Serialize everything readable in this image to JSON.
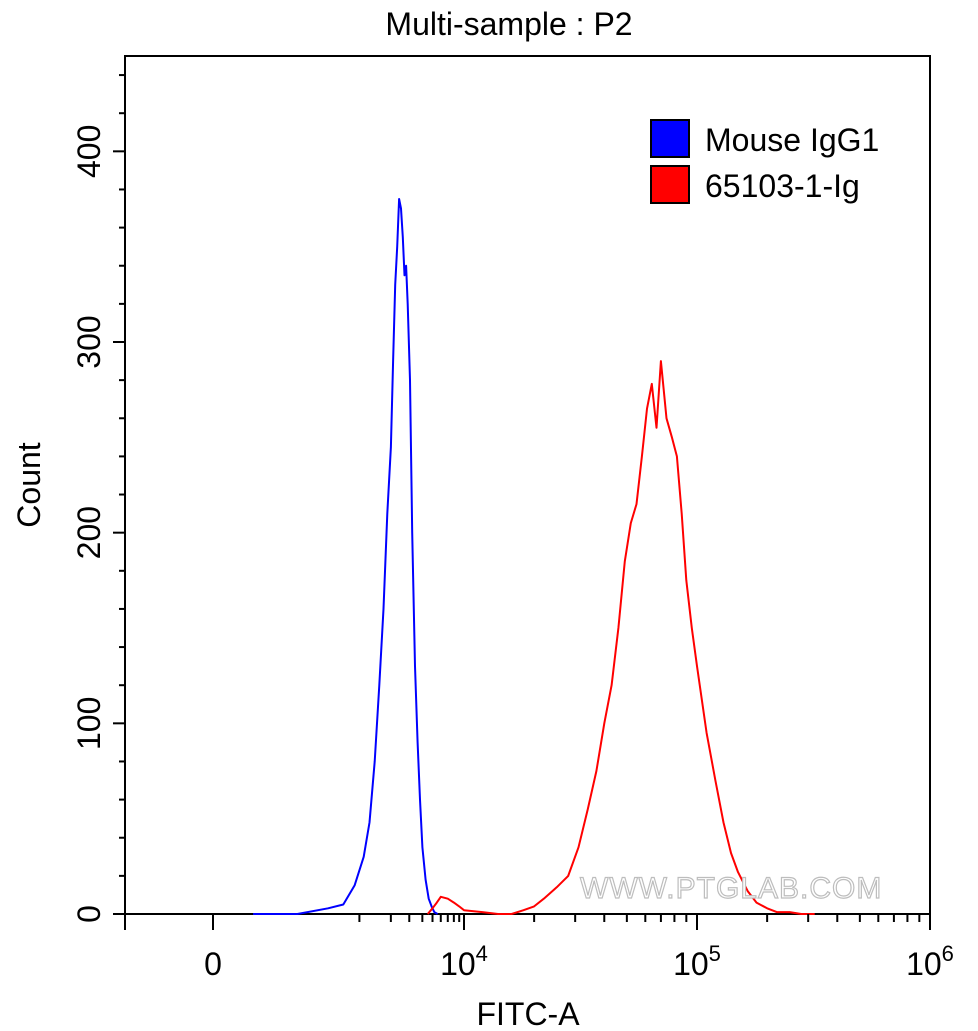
{
  "chart_data": {
    "type": "line",
    "title": "Multi-sample : P2",
    "xlabel": "FITC-A",
    "ylabel": "Count",
    "x_scale": "biexponential",
    "xlim": [
      -1000,
      1000000
    ],
    "ylim": [
      0,
      450
    ],
    "x_tick_labels": [
      {
        "value": 0,
        "base": "0",
        "exp": ""
      },
      {
        "value": 10000,
        "base": "10",
        "exp": "4"
      },
      {
        "value": 100000,
        "base": "10",
        "exp": "5"
      },
      {
        "value": 1000000,
        "base": "10",
        "exp": "6"
      }
    ],
    "y_ticks": [
      0,
      100,
      200,
      300,
      400
    ],
    "legend": {
      "position": "top-right"
    },
    "watermark": "WWW.PTGLAB.COM",
    "series": [
      {
        "name": "Mouse IgG1",
        "color": "#0000ff",
        "x": [
          80,
          250,
          500,
          700,
          900,
          1100,
          1250,
          1400,
          1550,
          1700,
          1850,
          2000,
          2100,
          2200,
          2300,
          2400,
          2500,
          2600,
          2700,
          2800,
          2900,
          3050,
          3200,
          3400,
          3600,
          3800,
          4000,
          4300,
          4600,
          4900,
          5200,
          5600
        ],
        "values": [
          0,
          0,
          3,
          5,
          15,
          30,
          48,
          80,
          120,
          160,
          210,
          245,
          290,
          330,
          350,
          375,
          370,
          355,
          335,
          340,
          320,
          280,
          200,
          130,
          90,
          60,
          35,
          18,
          8,
          4,
          1,
          0
        ]
      },
      {
        "name": "65103-1-Ig",
        "color": "#ff0000",
        "x": [
          4500,
          5000,
          5500,
          6000,
          7000,
          8000,
          9000,
          10000,
          12000,
          14000,
          16000,
          18000,
          20000,
          22000,
          25000,
          28000,
          31000,
          34000,
          37000,
          40000,
          43000,
          46000,
          49000,
          52000,
          55000,
          58000,
          61000,
          64000,
          67000,
          70000,
          74000,
          78000,
          82000,
          86000,
          90000,
          95000,
          100000,
          110000,
          120000,
          130000,
          140000,
          150000,
          165000,
          180000,
          200000,
          220000,
          250000,
          280000,
          320000
        ],
        "values": [
          0,
          3,
          6,
          9,
          8,
          6,
          4,
          2,
          1,
          0,
          0,
          2,
          4,
          8,
          14,
          20,
          35,
          55,
          75,
          100,
          120,
          150,
          185,
          205,
          215,
          240,
          265,
          278,
          255,
          290,
          260,
          250,
          240,
          210,
          175,
          150,
          130,
          95,
          70,
          48,
          32,
          22,
          12,
          6,
          3,
          1,
          1,
          0,
          0
        ]
      }
    ]
  }
}
